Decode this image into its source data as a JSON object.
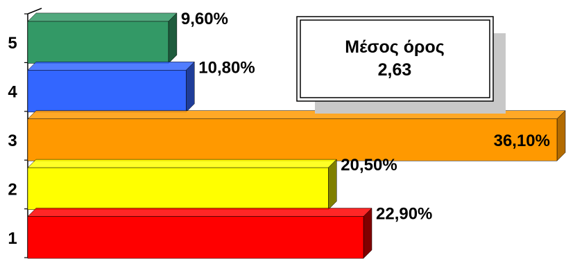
{
  "chart_data": {
    "type": "bar",
    "orientation": "horizontal",
    "categories": [
      "1",
      "2",
      "3",
      "4",
      "5"
    ],
    "values": [
      22.9,
      20.5,
      36.1,
      10.8,
      9.6
    ],
    "value_labels": [
      "22,90%",
      "20,50%",
      "36,10%",
      "10,80%",
      "9,60%"
    ],
    "colors": [
      "#ff0000",
      "#ffff00",
      "#ff9900",
      "#3366ff",
      "#339966"
    ],
    "side_colors": [
      "#800000",
      "#808000",
      "#b36b00",
      "#1f3d99",
      "#1f5c3d"
    ],
    "xlim": [
      0,
      36.1
    ],
    "style": "3d",
    "annotation": {
      "line1": "Μέσος όρος",
      "line2": "2,63"
    }
  }
}
